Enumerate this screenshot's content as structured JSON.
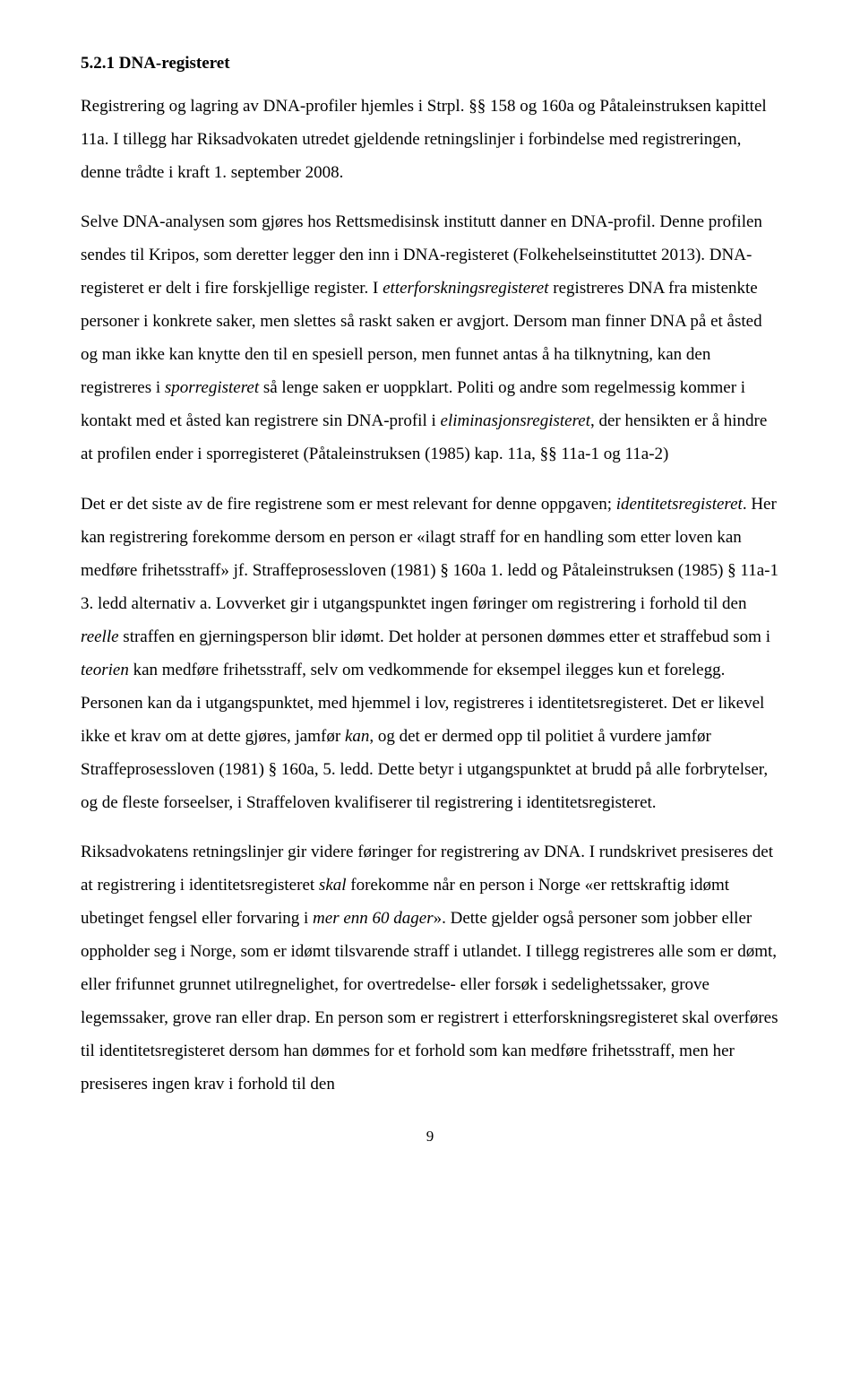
{
  "heading": "5.2.1 DNA-registeret",
  "p1a": "Registrering og lagring av DNA-profiler hjemles i Strpl. §§ 158 og 160a og Påtaleinstruksen kapittel 11a. I tillegg har Riksadvokaten utredet gjeldende retningslinjer i forbindelse med registreringen, denne trådte i kraft 1. september 2008.",
  "p2_1": "Selve DNA-analysen som gjøres hos Rettsmedisinsk institutt danner en DNA-profil. Denne profilen sendes til Kripos, som deretter legger den inn i DNA-registeret (Folkehelseinstituttet 2013). DNA-registeret er delt i fire forskjellige register. I ",
  "p2_i1": "etterforskningsregisteret",
  "p2_2": " registreres DNA fra mistenkte personer i konkrete saker, men slettes så raskt saken er avgjort. Dersom man finner DNA på et åsted og man ikke kan knytte den til en spesiell person, men funnet antas å ha tilknytning, kan den registreres i ",
  "p2_i2": "sporregisteret",
  "p2_3": " så lenge saken er uoppklart. Politi og andre som regelmessig kommer i kontakt med et åsted kan registrere sin DNA-profil i ",
  "p2_i3": "eliminasjonsregisteret",
  "p2_4": ", der hensikten er å hindre at profilen ender i sporregisteret (Påtaleinstruksen (1985) kap. 11a, §§ 11a-1 og 11a-2)",
  "p3_1": "Det er det siste av de fire registrene som er mest relevant for denne oppgaven; ",
  "p3_i1": "identitetsregisteret",
  "p3_2": ". Her kan registrering forekomme dersom en person er «ilagt straff for en handling som etter loven kan medføre frihetsstraff» jf. Straffeprosessloven (1981) § 160a 1. ledd og Påtaleinstruksen (1985) § 11a-1 3. ledd alternativ a. Lovverket gir i utgangspunktet ingen føringer om registrering i forhold til den ",
  "p3_i2": "reelle",
  "p3_3": " straffen en gjerningsperson blir idømt. Det holder at personen dømmes etter et straffebud som i ",
  "p3_i3": "teorien",
  "p3_4": " kan medføre frihetsstraff, selv om vedkommende for eksempel ilegges kun et forelegg. Personen kan da i utgangspunktet, med hjemmel i lov, registreres i identitetsregisteret. Det er likevel ikke et krav om at dette gjøres, jamfør ",
  "p3_i4": "kan",
  "p3_5": ", og det er dermed opp til politiet å vurdere jamfør Straffeprosessloven (1981) § 160a, 5. ledd. Dette betyr i utgangspunktet at brudd på alle forbrytelser, og de fleste forseelser, i Straffeloven kvalifiserer til registrering i identitetsregisteret.",
  "p4_1": "Riksadvokatens retningslinjer gir videre føringer for registrering av DNA. I rundskrivet presiseres det at registrering i identitetsregisteret ",
  "p4_i1": "skal",
  "p4_2": " forekomme når en person i Norge «er rettskraftig idømt ubetinget fengsel eller forvaring i ",
  "p4_i2": "mer enn 60 dager",
  "p4_3": "». Dette gjelder også personer som jobber eller oppholder seg i Norge, som er idømt tilsvarende straff i utlandet. I tillegg registreres alle som er dømt, eller frifunnet grunnet utilregnelighet, for overtredelse- eller forsøk i sedelighetssaker, grove legemssaker, grove ran eller drap. En person som er registrert i etterforskningsregisteret skal overføres til identitetsregisteret dersom han dømmes for et forhold som kan medføre frihetsstraff, men her presiseres ingen krav i forhold til den",
  "page_number": "9"
}
